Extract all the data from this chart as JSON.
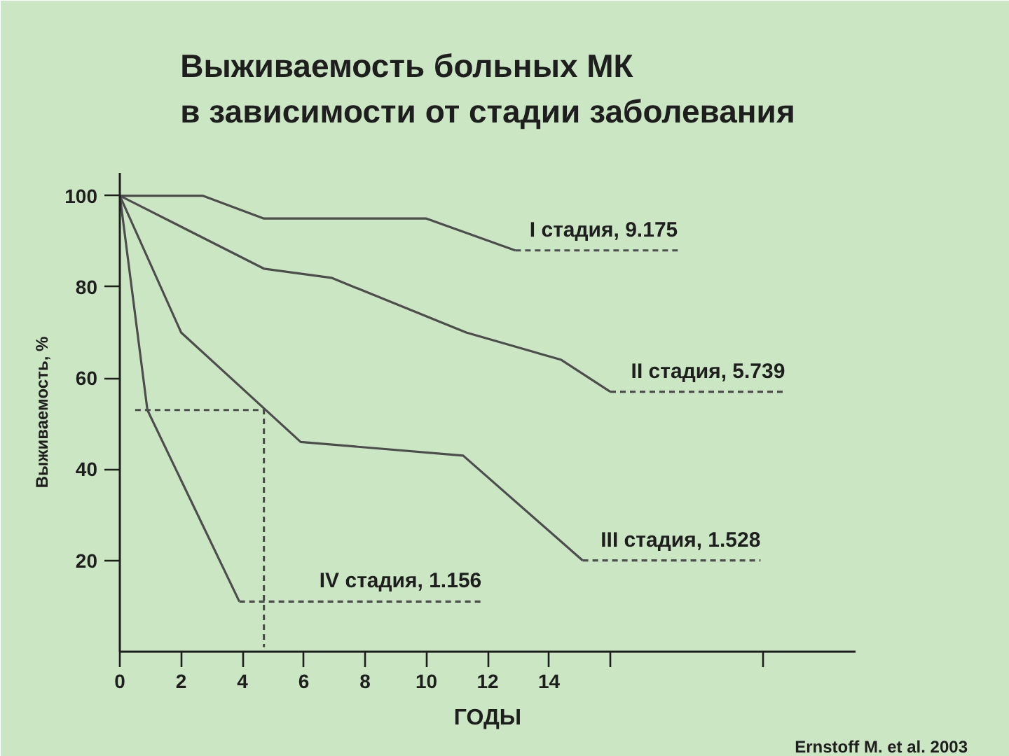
{
  "chart_data": {
    "type": "line",
    "title": "Выживаемость больных МК\nв зависимости от стадии заболевания",
    "xlabel": "ГОДЫ",
    "ylabel": "Выживаемость, %",
    "annotations": [
      "Ernstoff M. et al. 2003"
    ],
    "xlim": [
      0,
      24
    ],
    "ylim": [
      0,
      105
    ],
    "xticks": [
      0,
      2,
      4,
      6,
      8,
      10,
      12,
      14,
      {
        "value": 16,
        "label": null
      },
      {
        "value": 21,
        "label": null
      }
    ],
    "yticks": [
      20,
      40,
      60,
      80,
      100
    ],
    "grid": false,
    "series": [
      {
        "color": "#4d4d4d",
        "x": [
          0,
          2.7,
          4.7,
          10.0,
          12.9
        ],
        "values": [
          100,
          100,
          95,
          95,
          88
        ]
      },
      {
        "name": "I стадия, 9.175",
        "color": "#4d4d4d",
        "line_style": "dashed",
        "x": [
          12.9,
          18.2
        ],
        "values": [
          88,
          88
        ]
      },
      {
        "color": "#4d4d4d",
        "x": [
          0,
          4.7,
          6.9,
          11.3,
          14.4,
          16.0
        ],
        "values": [
          100,
          84,
          82,
          70,
          64,
          57
        ]
      },
      {
        "name": "II стадия, 5.739",
        "color": "#4d4d4d",
        "line_style": "dashed",
        "x": [
          16.0,
          21.7
        ],
        "values": [
          57,
          57
        ]
      },
      {
        "color": "#4d4d4d",
        "x": [
          0,
          2.0,
          5.9,
          11.2,
          15.1
        ],
        "values": [
          100,
          70,
          46,
          43,
          20
        ]
      },
      {
        "name": "III стадия, 1.528",
        "color": "#4d4d4d",
        "line_style": "dashed",
        "x": [
          15.1,
          20.9
        ],
        "values": [
          20,
          20
        ]
      },
      {
        "color": "#4d4d4d",
        "x": [
          0,
          0.9,
          3.9
        ],
        "values": [
          100,
          53,
          11
        ]
      },
      {
        "name": "IV стадия, 1.156",
        "color": "#4d4d4d",
        "line_style": "dashed",
        "x": [
          3.9,
          11.8
        ],
        "values": [
          11,
          11
        ]
      },
      {
        "color": "#4d4d4d",
        "line_style": "dashed",
        "x": [
          0.5,
          4.7,
          4.7
        ],
        "values": [
          53,
          53,
          1
        ]
      }
    ]
  }
}
